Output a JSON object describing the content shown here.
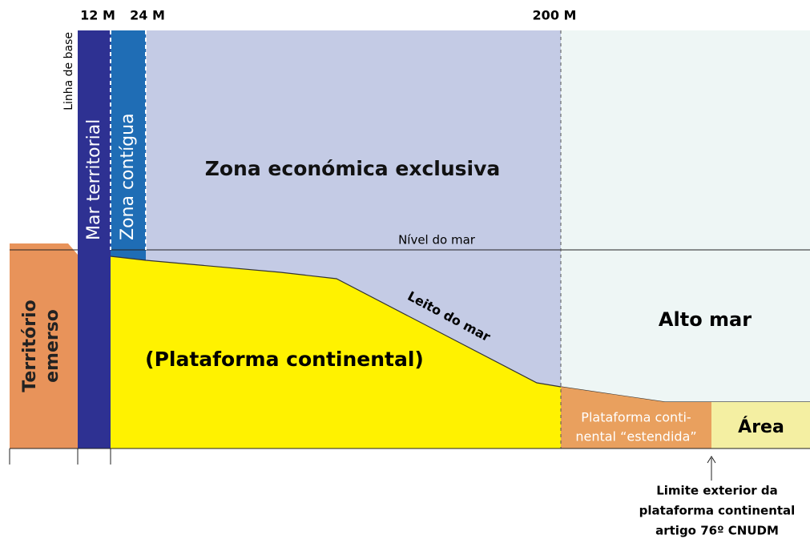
{
  "distances": [
    "12 M",
    "24 M",
    "200 M"
  ],
  "zones": {
    "baseline": "Linha de base",
    "territorial_sea": "Mar territorial",
    "contiguous_zone": "Zona contígua",
    "eez": "Zona económica exclusiva",
    "high_sea": "Alto mar",
    "land": [
      "Território",
      "emerso"
    ]
  },
  "sea_level": "Nível do mar",
  "seabed": "Leito do mar",
  "shelf": "(Plataforma continental)",
  "extended_shelf": [
    "Plataforma conti-",
    "nental “estendida”"
  ],
  "area": "Área",
  "outer_limit": [
    "Limite exterior da",
    "plataforma continental",
    "artigo 76º CNUDM"
  ]
}
